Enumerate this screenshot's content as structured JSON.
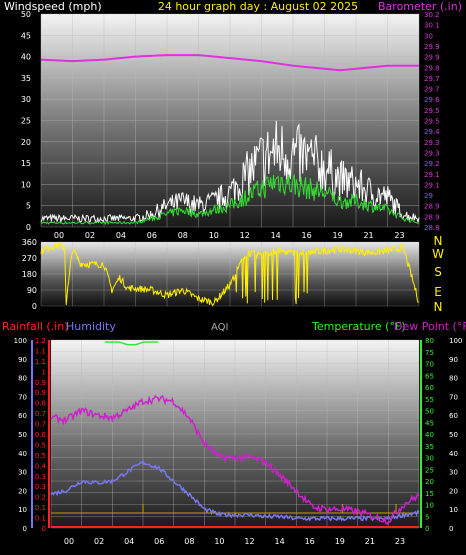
{
  "header": {
    "left_label": "Windspeed (mph)",
    "center_title": "24 hour graph day : August 02 2025",
    "right_label": "Barometer (.in)"
  },
  "colors": {
    "background": "#000000",
    "wind": "#ffffff",
    "gust": "#33dd33",
    "barometer": "#dd33dd",
    "direction": "#ffee00",
    "rain": "#ff2222",
    "humidity": "#7777ee",
    "temperature": "#33ee33",
    "dewpoint": "#cc22cc",
    "title": "#ffee00",
    "tick_text": "#ffffff",
    "grid": "#bbbbbb"
  },
  "x_ticks": [
    "00",
    "02",
    "04",
    "06",
    "08",
    "10",
    "12",
    "14",
    "16",
    "19",
    "21",
    "23"
  ],
  "legend_bottom": {
    "rainfall": "Rainfall (.in)",
    "humidity": "Humidity",
    "aqi": "AQI",
    "temperature": "Temperature (°F)",
    "dewpoint": "Dew Point (°F)"
  },
  "chart_data": [
    {
      "type": "line",
      "panel": "wind",
      "x_unit": "hour",
      "ylim_left": [
        0,
        50
      ],
      "left_ticks": [
        "0",
        "5",
        "10",
        "15",
        "20",
        "25",
        "30",
        "35",
        "40",
        "45",
        "50"
      ],
      "ylim_right": [
        28.8,
        30.2
      ],
      "right_ticks": [
        "28.8",
        "28.9",
        "28.9",
        "29",
        "29.1",
        "29.1",
        "29.2",
        "29.3",
        "29.3",
        "29.4",
        "29.5",
        "29.5",
        "29.6",
        "29.7",
        "29.7",
        "29.8",
        "29.9",
        "29.9",
        "30",
        "30.1",
        "30.2"
      ],
      "series": [
        {
          "name": "Windspeed",
          "axis": "left",
          "x": [
            0,
            1,
            2,
            3,
            4,
            5,
            6,
            7,
            8,
            9,
            10,
            11,
            12,
            13,
            14,
            15,
            16,
            17,
            18,
            19,
            20,
            21,
            22,
            23,
            24
          ],
          "values": [
            2,
            2,
            2,
            2,
            2,
            2,
            2,
            3,
            5,
            6,
            5,
            6,
            8,
            12,
            16,
            18,
            17,
            16,
            14,
            11,
            10,
            8,
            7,
            3,
            2
          ]
        },
        {
          "name": "Gust",
          "axis": "left",
          "x": [
            0,
            1,
            2,
            3,
            4,
            5,
            6,
            7,
            8,
            9,
            10,
            11,
            12,
            13,
            14,
            15,
            16,
            17,
            18,
            19,
            20,
            21,
            22,
            23,
            24
          ],
          "values": [
            1,
            1,
            1,
            1,
            1,
            1,
            1,
            2,
            3,
            4,
            3,
            4,
            5,
            7,
            9,
            11,
            10,
            9,
            8,
            6,
            6,
            5,
            4,
            2,
            1
          ]
        },
        {
          "name": "Barometer",
          "axis": "right",
          "x": [
            0,
            2,
            4,
            6,
            8,
            9,
            10,
            12,
            14,
            16,
            18,
            19,
            20,
            22,
            24
          ],
          "values": [
            29.9,
            29.89,
            29.9,
            29.92,
            29.93,
            29.93,
            29.93,
            29.91,
            29.89,
            29.86,
            29.84,
            29.83,
            29.84,
            29.86,
            29.86
          ]
        }
      ]
    },
    {
      "type": "line",
      "panel": "wind_direction",
      "x_unit": "hour",
      "ylim": [
        0,
        360
      ],
      "left_ticks": [
        "0",
        "90",
        "180",
        "270",
        "360"
      ],
      "right_labels": [
        "N",
        "E",
        "S",
        "W",
        "N"
      ],
      "series": [
        {
          "name": "Direction",
          "x": [
            0,
            0.5,
            1,
            1.5,
            1.6,
            2,
            2.5,
            3,
            4,
            4.5,
            5,
            5.5,
            6,
            7,
            8,
            9,
            10,
            11,
            12,
            13,
            14,
            15,
            16,
            17,
            18,
            19,
            20,
            21,
            22,
            23,
            24
          ],
          "values": [
            310,
            330,
            340,
            330,
            20,
            320,
            240,
            235,
            235,
            90,
            160,
            100,
            100,
            90,
            60,
            90,
            40,
            20,
            120,
            300,
            290,
            310,
            300,
            300,
            310,
            320,
            310,
            300,
            310,
            330,
            20
          ]
        }
      ]
    },
    {
      "type": "line",
      "panel": "temperature_humidity_rain",
      "x_unit": "hour",
      "ylim_humidity": [
        0,
        100
      ],
      "humidity_ticks": [
        "0",
        "10",
        "20",
        "30",
        "40",
        "50",
        "60",
        "70",
        "80",
        "90",
        "100"
      ],
      "ylim_rain": [
        0,
        1.2
      ],
      "rain_ticks": [
        "0",
        "0.1",
        "0.1",
        "0.2",
        "0.3",
        "0.3",
        "0.4",
        "0.5",
        "0.5",
        "0.6",
        "0.7",
        "0.7",
        "0.8",
        "0.9",
        "0.9",
        "1",
        "1.1",
        "1.1",
        "1.2"
      ],
      "ylim_temp": [
        0,
        80
      ],
      "temp_ticks": [
        "0",
        "5",
        "10",
        "15",
        "20",
        "25",
        "30",
        "35",
        "40",
        "45",
        "50",
        "55",
        "60",
        "65",
        "70",
        "75",
        "80"
      ],
      "ylim_aux": [
        0,
        100
      ],
      "aux_ticks": [
        "0",
        "10",
        "20",
        "30",
        "40",
        "50",
        "60",
        "70",
        "80",
        "90",
        "100"
      ],
      "series": [
        {
          "name": "Humidity",
          "axis": "humidity",
          "x": [
            0,
            1,
            2,
            3,
            4,
            5,
            6,
            7,
            8,
            9,
            10,
            11,
            12,
            13,
            14,
            15,
            16,
            17,
            18,
            19,
            20,
            21,
            22,
            23,
            24
          ],
          "values": [
            18,
            20,
            25,
            24,
            25,
            30,
            35,
            32,
            25,
            18,
            10,
            7,
            7,
            7,
            6,
            6,
            5,
            5,
            5,
            5,
            5,
            5,
            5,
            7,
            8
          ]
        },
        {
          "name": "Temperature",
          "axis": "temp",
          "x": [
            3.5,
            4,
            4.5,
            5,
            5.5,
            6,
            6.5,
            7
          ],
          "values": [
            81,
            80,
            79,
            78,
            78,
            79,
            80,
            81
          ]
        },
        {
          "name": "Dew Point",
          "axis": "temp",
          "x": [
            0,
            1,
            2,
            3,
            4,
            5,
            6,
            7,
            8,
            9,
            10,
            11,
            12,
            13,
            14,
            15,
            16,
            17,
            18,
            19,
            20,
            21,
            22,
            23,
            24
          ],
          "values": [
            47,
            46,
            50,
            48,
            47,
            50,
            54,
            55,
            54,
            47,
            36,
            30,
            30,
            30,
            28,
            22,
            16,
            9,
            8,
            8,
            7,
            5,
            3,
            10,
            14
          ]
        },
        {
          "name": "Rainfall",
          "axis": "rain",
          "x": [
            0,
            24
          ],
          "values": [
            0,
            0
          ]
        },
        {
          "name": "AQI",
          "axis": "aux",
          "x": [
            0,
            1,
            2,
            3,
            4,
            5,
            6,
            7,
            8,
            9,
            10,
            11,
            12,
            13,
            14,
            15,
            16,
            17,
            18,
            19,
            20,
            21,
            22,
            23,
            24
          ],
          "values": [
            8,
            8,
            8,
            8,
            8,
            8,
            8,
            8,
            8,
            8,
            8,
            8,
            8,
            8,
            8,
            8,
            8,
            8,
            8,
            8,
            8,
            8,
            8,
            8,
            8
          ]
        }
      ]
    }
  ]
}
